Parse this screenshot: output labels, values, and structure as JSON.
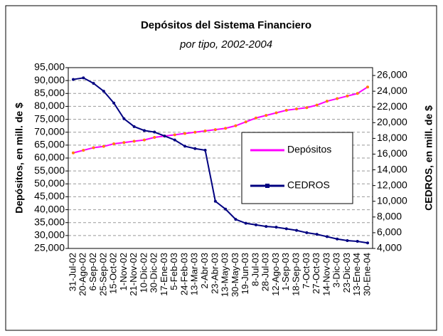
{
  "chart_data": {
    "type": "line",
    "title": "Depósitos del Sistema Financiero",
    "subtitle": "por tipo, 2002-2004",
    "ylabel": "Depósitos, en mill. de $",
    "y2label": "CEDROS, en mill. de $",
    "categories": [
      "31-Jul-02",
      "20-Ago-02",
      "6-Sep-02",
      "25-Sep-02",
      "15-Oct-02",
      "1-Nov-02",
      "21-Nov-02",
      "10-Dic-02",
      "30-Dic-02",
      "17-Ene-03",
      "5-Feb-03",
      "24-Feb-03",
      "13-Mar-03",
      "2-Abr-03",
      "23-Abr-03",
      "13-May-03",
      "30-May-03",
      "19-Jun-03",
      "8-Jul-03",
      "28-Jul-03",
      "12-Ago-03",
      "1-Sep-03",
      "18-Sep-03",
      "7-Oct-03",
      "27-Oct-03",
      "14-Nov-03",
      "3-Dic-03",
      "23-Dic-03",
      "13-Ene-04",
      "30-Ene-04"
    ],
    "series": [
      {
        "name": "Depósitos",
        "color": "#ff00ff",
        "axis": "y",
        "values": [
          62000,
          63000,
          64000,
          64500,
          65500,
          66000,
          66500,
          67000,
          68000,
          68500,
          69000,
          69500,
          70000,
          70500,
          71000,
          71500,
          72500,
          74000,
          75500,
          76500,
          77500,
          78500,
          79000,
          79500,
          80500,
          82000,
          83000,
          84000,
          85000,
          87500
        ]
      },
      {
        "name": "CEDROS",
        "color": "#000080",
        "axis": "y2",
        "values": [
          25500,
          25700,
          25000,
          24000,
          22500,
          20500,
          19500,
          19000,
          18800,
          18300,
          17800,
          17000,
          16700,
          16500,
          10000,
          9000,
          7700,
          7200,
          7000,
          6800,
          6700,
          6500,
          6300,
          6000,
          5800,
          5500,
          5200,
          5000,
          4900,
          4700
        ]
      }
    ],
    "ylim": [
      25000,
      95000
    ],
    "yticks": [
      {
        "value": 25000,
        "label": "25,000"
      },
      {
        "value": 30000,
        "label": "30,000"
      },
      {
        "value": 35000,
        "label": "35,000"
      },
      {
        "value": 40000,
        "label": "40,000"
      },
      {
        "value": 45000,
        "label": "45,000"
      },
      {
        "value": 50000,
        "label": "50,000"
      },
      {
        "value": 55000,
        "label": "55,000"
      },
      {
        "value": 60000,
        "label": "60,000"
      },
      {
        "value": 65000,
        "label": "65,000"
      },
      {
        "value": 70000,
        "label": "70,000"
      },
      {
        "value": 75000,
        "label": "75,000"
      },
      {
        "value": 80000,
        "label": "80,000"
      },
      {
        "value": 85000,
        "label": "85,000"
      },
      {
        "value": 90000,
        "label": "90,000"
      },
      {
        "value": 95000,
        "label": "95,000"
      }
    ],
    "y2lim": [
      4000,
      27000
    ],
    "y2ticks": [
      {
        "value": 4000,
        "label": "4,000"
      },
      {
        "value": 6000,
        "label": "6,000"
      },
      {
        "value": 8000,
        "label": "8,000"
      },
      {
        "value": 10000,
        "label": "10,000"
      },
      {
        "value": 12000,
        "label": "12,000"
      },
      {
        "value": 14000,
        "label": "14,000"
      },
      {
        "value": 16000,
        "label": "16,000"
      },
      {
        "value": 18000,
        "label": "18,000"
      },
      {
        "value": 20000,
        "label": "20,000"
      },
      {
        "value": 22000,
        "label": "22,000"
      },
      {
        "value": 24000,
        "label": "24,000"
      },
      {
        "value": 26000,
        "label": "26,000"
      }
    ],
    "grid": true,
    "legend": "right"
  }
}
